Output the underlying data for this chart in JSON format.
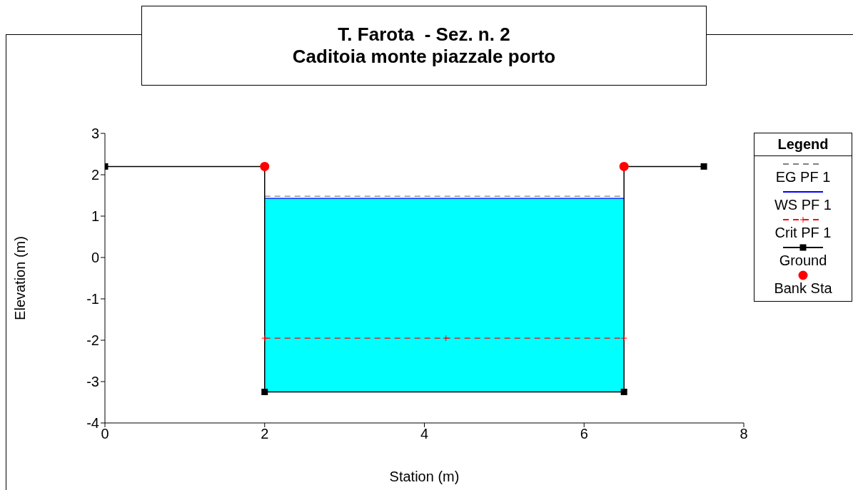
{
  "chart_data": {
    "type": "line",
    "title": "T. Farota  - Sez. n. 2",
    "subtitle": "Caditoia monte piazzale porto",
    "xlabel": "Station (m)",
    "ylabel": "Elevation (m)",
    "legend_title": "Legend",
    "legend": "right",
    "grid": false,
    "xlim": [
      0,
      8
    ],
    "xticks": [
      0,
      2,
      4,
      6,
      8
    ],
    "ylim": [
      -4,
      3
    ],
    "yticks": [
      -4,
      -3,
      -2,
      -1,
      0,
      1,
      2,
      3
    ],
    "series": [
      {
        "name": "EG PF 1",
        "color": "#808080",
        "line_style": "dashed",
        "marker": "none",
        "x": [
          2,
          6.5
        ],
        "values": [
          1.48,
          1.48
        ]
      },
      {
        "name": "WS PF 1",
        "color": "#0000ff",
        "line_style": "solid",
        "marker": "none",
        "x": [
          2,
          6.5
        ],
        "values": [
          1.43,
          1.43
        ]
      },
      {
        "name": "Crit PF 1",
        "color": "#ff0000",
        "line_style": "dashed",
        "marker": "cross",
        "x": [
          2,
          4.27,
          6.5
        ],
        "values": [
          -1.95,
          -1.95,
          -1.95
        ]
      },
      {
        "name": "Ground",
        "color": "#000000",
        "line_style": "solid",
        "marker": "square",
        "x": [
          0,
          2,
          2,
          6.5,
          6.5,
          7.5
        ],
        "values": [
          2.2,
          2.2,
          -3.25,
          -3.25,
          2.2,
          2.2
        ]
      },
      {
        "name": "Bank Sta",
        "type": "scatter",
        "color": "#ff0000",
        "marker": "circle",
        "x": [
          2,
          6.5
        ],
        "values": [
          2.2,
          2.2
        ]
      }
    ]
  }
}
